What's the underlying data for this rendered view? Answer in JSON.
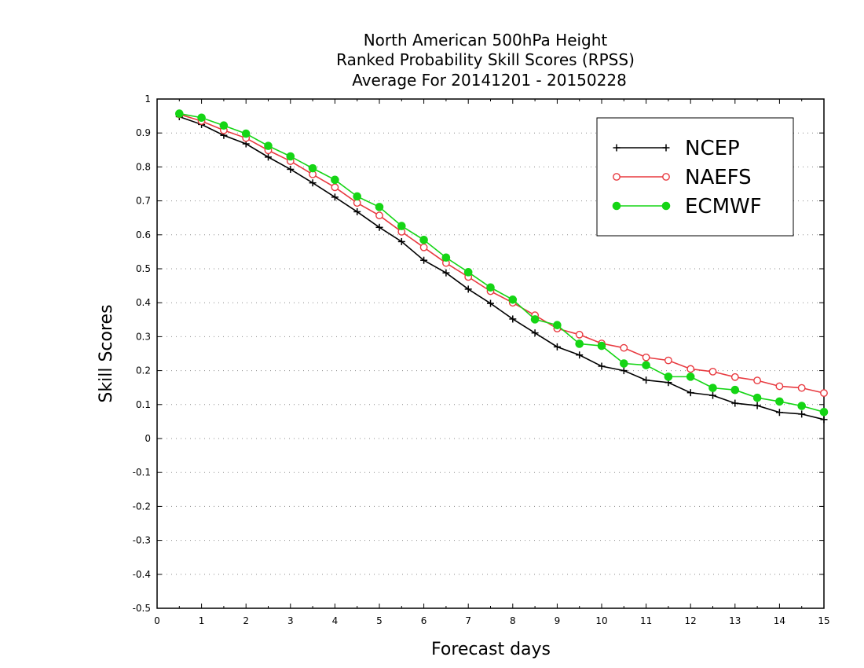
{
  "chart_data": {
    "type": "line",
    "title_lines": [
      "North American 500hPa Height",
      "Ranked Probability Skill Scores (RPSS)",
      "Average For 20141201 - 20150228"
    ],
    "xlabel": "Forecast days",
    "ylabel": "Skill Scores",
    "xlim": [
      0,
      15
    ],
    "ylim": [
      -0.5,
      1
    ],
    "xticks": [
      "0",
      "1",
      "2",
      "3",
      "4",
      "5",
      "6",
      "7",
      "8",
      "9",
      "10",
      "11",
      "12",
      "13",
      "14",
      "15"
    ],
    "yticks": [
      "1",
      "0.9",
      "0.8",
      "0.7",
      "0.6",
      "0.5",
      "0.4",
      "0.3",
      "0.2",
      "0.1",
      "0",
      "-0.1",
      "-0.2",
      "-0.3",
      "-0.4",
      "-0.5"
    ],
    "grid": "horizontal-dotted",
    "legend_position": "top-right",
    "x": [
      0.5,
      1,
      1.5,
      2,
      2.5,
      3,
      3.5,
      4,
      4.5,
      5,
      5.5,
      6,
      6.5,
      7,
      7.5,
      8,
      8.5,
      9,
      9.5,
      10,
      10.5,
      11,
      11.5,
      12,
      12.5,
      13,
      13.5,
      14,
      14.5,
      15
    ],
    "series": [
      {
        "name": "NCEP",
        "color": "#000000",
        "marker": "plus",
        "values": [
          0.948,
          0.925,
          0.893,
          0.868,
          0.829,
          0.793,
          0.753,
          0.711,
          0.668,
          0.622,
          0.58,
          0.525,
          0.488,
          0.44,
          0.398,
          0.352,
          0.311,
          0.27,
          0.246,
          0.213,
          0.2,
          0.172,
          0.165,
          0.135,
          0.127,
          0.104,
          0.097,
          0.077,
          0.072,
          0.056
        ]
      },
      {
        "name": "NAEFS",
        "color": "#e8393f",
        "marker": "open-circle",
        "values": [
          0.955,
          0.935,
          0.908,
          0.885,
          0.849,
          0.817,
          0.778,
          0.74,
          0.694,
          0.657,
          0.609,
          0.563,
          0.517,
          0.476,
          0.434,
          0.4,
          0.363,
          0.324,
          0.306,
          0.28,
          0.267,
          0.239,
          0.23,
          0.205,
          0.197,
          0.181,
          0.171,
          0.154,
          0.149,
          0.134
        ]
      },
      {
        "name": "ECMWF",
        "color": "#15d515",
        "marker": "filled-circle",
        "values": [
          0.957,
          0.945,
          0.922,
          0.898,
          0.862,
          0.831,
          0.796,
          0.762,
          0.713,
          0.682,
          0.626,
          0.585,
          0.533,
          0.49,
          0.445,
          0.409,
          0.351,
          0.334,
          0.279,
          0.273,
          0.221,
          0.216,
          0.182,
          0.182,
          0.149,
          0.143,
          0.12,
          0.109,
          0.096,
          0.078
        ]
      }
    ]
  }
}
